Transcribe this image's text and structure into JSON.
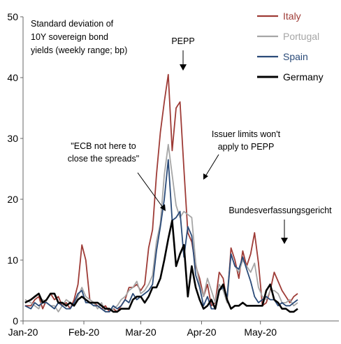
{
  "chart_data": {
    "type": "line",
    "title": "Standard deviation of\n10Y sovereign bond\nyields (weekly range; bp)",
    "xlabel": "",
    "ylabel": "",
    "ylim": [
      0,
      50
    ],
    "yticks": [
      0,
      10,
      20,
      30,
      40,
      50
    ],
    "xlim": [
      "2020-01-01",
      "2020-06-10"
    ],
    "xticks": [
      "2020-01-01",
      "2020-02-01",
      "2020-03-01",
      "2020-04-01",
      "2020-05-01"
    ],
    "xtick_labels": [
      "Jan-20",
      "Feb-20",
      "Mar-20",
      "Apr-20",
      "May-20"
    ],
    "grid": false,
    "legend_position": "top-right",
    "x": [
      "2020-01-02",
      "2020-01-05",
      "2020-01-07",
      "2020-01-09",
      "2020-01-11",
      "2020-01-13",
      "2020-01-15",
      "2020-01-17",
      "2020-01-19",
      "2020-01-21",
      "2020-01-23",
      "2020-01-25",
      "2020-01-27",
      "2020-01-29",
      "2020-01-31",
      "2020-02-02",
      "2020-02-04",
      "2020-02-06",
      "2020-02-08",
      "2020-02-10",
      "2020-02-12",
      "2020-02-14",
      "2020-02-16",
      "2020-02-18",
      "2020-02-20",
      "2020-02-22",
      "2020-02-24",
      "2020-02-26",
      "2020-02-28",
      "2020-03-01",
      "2020-03-03",
      "2020-03-05",
      "2020-03-07",
      "2020-03-09",
      "2020-03-11",
      "2020-03-13",
      "2020-03-15",
      "2020-03-17",
      "2020-03-19",
      "2020-03-21",
      "2020-03-23",
      "2020-03-25",
      "2020-03-27",
      "2020-03-29",
      "2020-03-31",
      "2020-04-02",
      "2020-04-04",
      "2020-04-06",
      "2020-04-08",
      "2020-04-10",
      "2020-04-12",
      "2020-04-14",
      "2020-04-16",
      "2020-04-18",
      "2020-04-20",
      "2020-04-22",
      "2020-04-24",
      "2020-04-26",
      "2020-04-28",
      "2020-04-30",
      "2020-05-02",
      "2020-05-04",
      "2020-05-06",
      "2020-05-08",
      "2020-05-10",
      "2020-05-12",
      "2020-05-14",
      "2020-05-16",
      "2020-05-18",
      "2020-05-20"
    ],
    "series": [
      {
        "name": "Italy",
        "color": "#9e3b36",
        "values": [
          2.5,
          2.5,
          3.5,
          4.0,
          2.0,
          3.5,
          4.5,
          3.5,
          4.0,
          2.5,
          3.0,
          2.0,
          3.5,
          6.0,
          12.5,
          10.0,
          3.5,
          3.0,
          2.5,
          2.0,
          2.5,
          1.5,
          2.0,
          1.5,
          2.5,
          3.5,
          5.5,
          5.5,
          6.0,
          5.0,
          6.0,
          12.0,
          15.0,
          24.0,
          31.0,
          36.0,
          40.5,
          28.0,
          35.0,
          36.0,
          25.0,
          14.5,
          13.0,
          9.0,
          7.0,
          4.0,
          6.0,
          2.5,
          3.0,
          8.0,
          7.0,
          3.0,
          12.0,
          10.0,
          7.0,
          11.5,
          9.0,
          11.0,
          14.5,
          9.5,
          2.5,
          3.0,
          5.0,
          8.0,
          6.5,
          5.0,
          4.0,
          3.0,
          4.0,
          4.5
        ]
      },
      {
        "name": "Portugal",
        "color": "#a6a6a6",
        "values": [
          3.5,
          3.0,
          2.5,
          2.0,
          3.5,
          3.0,
          2.5,
          2.5,
          1.5,
          2.5,
          3.5,
          3.0,
          2.5,
          4.0,
          5.5,
          4.0,
          3.5,
          3.0,
          2.0,
          3.0,
          1.5,
          1.5,
          2.0,
          2.5,
          3.5,
          4.0,
          5.0,
          5.5,
          6.5,
          4.5,
          5.0,
          6.0,
          7.5,
          13.0,
          16.0,
          24.0,
          29.0,
          24.0,
          19.0,
          17.0,
          18.0,
          17.5,
          17.0,
          9.5,
          6.0,
          4.0,
          7.0,
          5.0,
          3.0,
          6.0,
          5.0,
          3.0,
          11.0,
          9.0,
          8.0,
          10.0,
          9.0,
          8.0,
          9.5,
          5.5,
          4.0,
          3.5,
          5.0,
          5.0,
          4.5,
          3.0,
          3.0,
          3.5,
          2.5,
          3.0
        ]
      },
      {
        "name": "Spain",
        "color": "#2a4a78",
        "values": [
          2.5,
          2.0,
          3.0,
          2.5,
          3.0,
          3.0,
          2.5,
          2.0,
          3.0,
          2.5,
          2.0,
          2.0,
          3.0,
          4.5,
          5.0,
          3.0,
          3.0,
          2.5,
          2.5,
          2.0,
          1.5,
          1.5,
          2.5,
          2.0,
          2.5,
          3.5,
          3.0,
          4.5,
          3.5,
          4.0,
          4.5,
          5.0,
          6.0,
          11.5,
          15.5,
          20.0,
          26.5,
          16.5,
          17.0,
          18.0,
          10.5,
          15.5,
          14.0,
          7.5,
          5.5,
          2.5,
          4.0,
          2.0,
          2.0,
          5.0,
          5.5,
          4.0,
          11.0,
          9.0,
          8.5,
          10.5,
          8.5,
          6.5,
          4.0,
          3.0,
          3.5,
          4.0,
          3.5,
          3.5,
          2.5,
          3.0,
          2.5,
          2.5,
          3.0,
          3.5
        ]
      },
      {
        "name": "Germany",
        "color": "#000000",
        "values": [
          3.0,
          3.5,
          4.0,
          4.5,
          3.0,
          3.5,
          4.5,
          4.5,
          3.0,
          3.0,
          2.5,
          3.0,
          2.5,
          3.5,
          4.0,
          3.5,
          3.0,
          3.0,
          3.0,
          2.5,
          2.0,
          2.0,
          1.5,
          1.5,
          2.0,
          2.0,
          2.0,
          3.5,
          4.0,
          4.0,
          3.0,
          4.0,
          5.5,
          5.5,
          7.0,
          10.0,
          13.5,
          16.5,
          9.0,
          11.0,
          12.5,
          4.0,
          9.0,
          5.5,
          3.5,
          2.0,
          2.5,
          3.5,
          2.0,
          5.0,
          6.0,
          3.5,
          2.0,
          2.5,
          2.5,
          3.0,
          2.5,
          2.5,
          2.5,
          2.5,
          2.5,
          5.0,
          6.0,
          3.5,
          3.0,
          2.0,
          2.0,
          1.5,
          1.5,
          2.0
        ]
      }
    ],
    "annotations": [
      {
        "text": "PEPP",
        "x": "2020-03-17",
        "y": 40.5
      },
      {
        "text": "\"ECB not here to\nclose the spreads\"",
        "x": "2020-03-13",
        "y": 18.5
      },
      {
        "text": "Issuer limits won't\napply to PEPP",
        "x": "2020-03-25",
        "y": 23.5
      },
      {
        "text": "Bundesverfassungsgericht",
        "x": "2020-05-05",
        "y": 15.5
      }
    ]
  }
}
